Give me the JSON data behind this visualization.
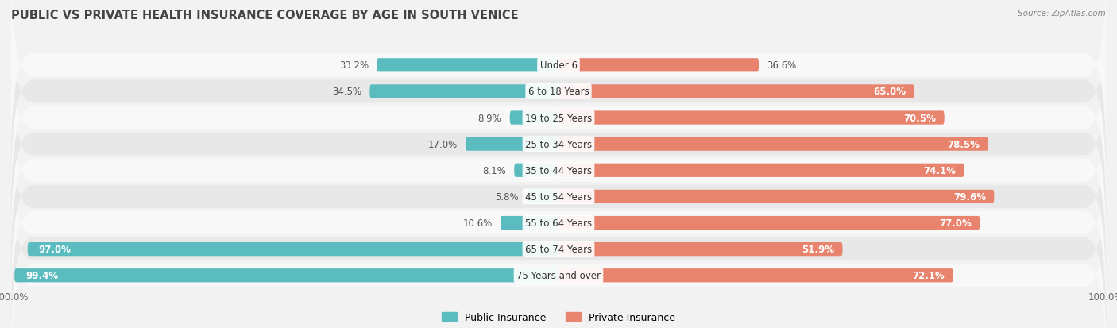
{
  "title": "PUBLIC VS PRIVATE HEALTH INSURANCE COVERAGE BY AGE IN SOUTH VENICE",
  "source": "Source: ZipAtlas.com",
  "categories": [
    "Under 6",
    "6 to 18 Years",
    "19 to 25 Years",
    "25 to 34 Years",
    "35 to 44 Years",
    "45 to 54 Years",
    "55 to 64 Years",
    "65 to 74 Years",
    "75 Years and over"
  ],
  "public_values": [
    33.2,
    34.5,
    8.9,
    17.0,
    8.1,
    5.8,
    10.6,
    97.0,
    99.4
  ],
  "private_values": [
    36.6,
    65.0,
    70.5,
    78.5,
    74.1,
    79.6,
    77.0,
    51.9,
    72.1
  ],
  "public_color": "#5bbcbf",
  "private_color": "#e8836e",
  "public_label": "Public Insurance",
  "private_label": "Private Insurance",
  "bg_color": "#f2f2f2",
  "row_bg_light": "#f8f8f8",
  "row_bg_dark": "#e8e8e8",
  "bar_height": 0.52,
  "label_fontsize": 8.5,
  "title_fontsize": 10.5,
  "max_value": 100.0
}
